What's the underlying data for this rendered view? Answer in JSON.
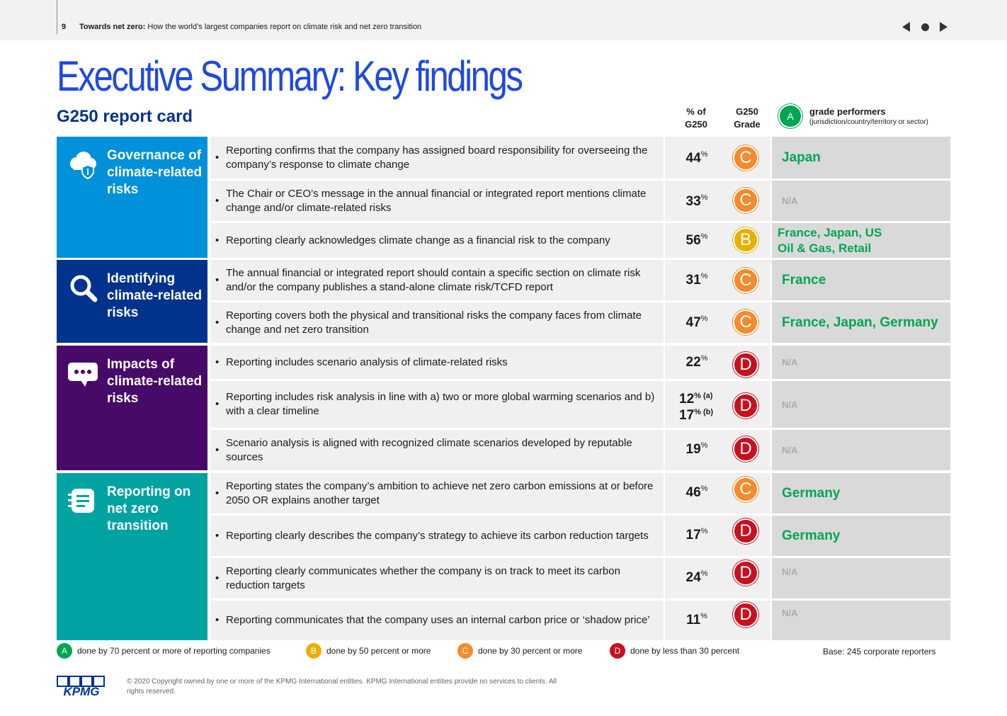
{
  "header": {
    "page_number": "9",
    "title_bold": "Towards net zero:",
    "title_rest": " How the world’s largest companies report on climate risk and net zero transition"
  },
  "main_title": "Executive Summary: Key findings",
  "subtitle": "G250 report card",
  "columns": {
    "pct_line1": "% of",
    "pct_line2": "G250",
    "grade_line1": "G250",
    "grade_line2": "Grade",
    "badge": "A",
    "performers_title": "grade performers",
    "performers_sub": "(jurisdiction/country/territory or sector)"
  },
  "categories": [
    {
      "label": "Governance of climate-related risks",
      "color": "#0091da",
      "icon": "cloud-shield-icon"
    },
    {
      "label": "Identifying climate-related risks",
      "color": "#00338d",
      "icon": "magnifier-icon"
    },
    {
      "label": "Impacts of climate-related risks",
      "color": "#470a68",
      "icon": "speech-bubble-icon"
    },
    {
      "label": "Reporting on net zero transition",
      "color": "#00a3a1",
      "icon": "notepad-icon"
    }
  ],
  "rows": [
    {
      "statement": "Reporting confirms that the company has assigned board responsibility for overseeing the company’s response to climate change",
      "value": "44",
      "unit": "%",
      "grade": "C",
      "performers": "Japan"
    },
    {
      "statement": "The Chair or CEO’s message in the annual financial or integrated report mentions climate change and/or climate-related risks",
      "value": "33",
      "unit": "%",
      "grade": "C",
      "performers": "N/A"
    },
    {
      "statement": "Reporting clearly acknowledges climate change as a financial risk to the company",
      "value": "56",
      "unit": "%",
      "grade": "B",
      "performers_line1": "France, Japan, US",
      "performers_line2": "Oil & Gas, Retail"
    },
    {
      "statement": "The annual financial or integrated report should contain a specific section on climate risk and/or the company publishes a stand-alone climate risk/TCFD report",
      "value": "31",
      "unit": "%",
      "grade": "C",
      "performers": "France"
    },
    {
      "statement": "Reporting covers both the physical and transitional risks the company faces from climate change and net zero transition",
      "value": "47",
      "unit": "%",
      "grade": "C",
      "performers": "France, Japan, Germany"
    },
    {
      "statement": "Reporting includes scenario analysis of climate-related risks",
      "value": "22",
      "unit": "%",
      "grade": "D",
      "performers": "N/A"
    },
    {
      "statement": "Reporting includes risk analysis in line with a) two or more global warming scenarios and b) with a clear timeline",
      "value_a": "12",
      "unit_a": "% (a)",
      "value_b": "17",
      "unit_b": "% (b)",
      "grade": "D",
      "performers": "N/A"
    },
    {
      "statement": "Scenario analysis is aligned with recognized climate scenarios developed by reputable sources",
      "value": "19",
      "unit": "%",
      "grade": "D",
      "performers": "N/A"
    },
    {
      "statement": "Reporting states the company’s ambition to achieve net zero carbon emissions at or before 2050 OR explains another target",
      "value": "46",
      "unit": "%",
      "grade": "C",
      "performers": "Germany"
    },
    {
      "statement": "Reporting clearly describes the company’s strategy to achieve its carbon reduction targets",
      "value": "17",
      "unit": "%",
      "grade": "D",
      "performers": "Germany"
    },
    {
      "statement": "Reporting clearly communicates whether the company is on track to meet its carbon reduction targets",
      "value": "24",
      "unit": "%",
      "grade": "D",
      "performers": "N/A"
    },
    {
      "statement": "Reporting communicates that the company uses an internal carbon price or ‘shadow price’",
      "value": "11",
      "unit": "%",
      "grade": "D",
      "performers": "N/A"
    }
  ],
  "legend": [
    {
      "grade": "A",
      "text": "done by 70 percent or more of reporting companies",
      "color": "#00a651"
    },
    {
      "grade": "B",
      "text": "done by 50 percent or more",
      "color": "#e8b004"
    },
    {
      "grade": "C",
      "text": "done by 30 percent or more",
      "color": "#f58a2e"
    },
    {
      "grade": "D",
      "text": "done by less than 30 percent",
      "color": "#c8101e"
    }
  ],
  "base_note": "Base: 245 corporate reporters",
  "footer": {
    "logo": "KPMG",
    "copyright": "© 2020 Copyright owned by one or more of the KPMG International entities. KPMG International entities provide no services to clients.  All rights reserved."
  },
  "colors": {
    "accent_blue": "#1e49e2",
    "kpmg_blue": "#00338d",
    "performer_green": "#00a651"
  }
}
